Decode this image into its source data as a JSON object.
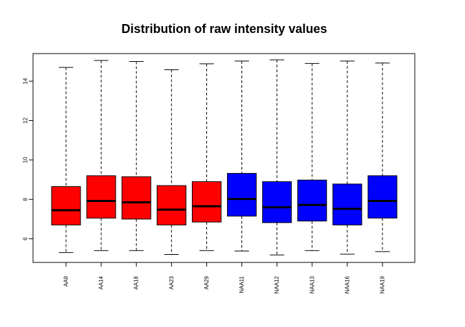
{
  "chart_data": {
    "type": "box",
    "title": "Distribution of raw intensity values",
    "xlabel": "",
    "ylabel": "",
    "ylim": [
      4.8,
      15.4
    ],
    "yticks": [
      6,
      8,
      10,
      12,
      14
    ],
    "categories": [
      "AA9",
      "AA14",
      "AA18",
      "AA23",
      "AA29",
      "NAA11",
      "NAA12",
      "NAA13",
      "NAA16",
      "NAA19"
    ],
    "colors": [
      "#ff0000",
      "#ff0000",
      "#ff0000",
      "#ff0000",
      "#ff0000",
      "#0000ff",
      "#0000ff",
      "#0000ff",
      "#0000ff",
      "#0000ff"
    ],
    "boxes": [
      {
        "min": 5.3,
        "q1": 6.7,
        "median": 7.45,
        "q3": 8.65,
        "max": 14.7
      },
      {
        "min": 5.4,
        "q1": 7.05,
        "median": 7.92,
        "q3": 9.2,
        "max": 15.05
      },
      {
        "min": 5.4,
        "q1": 7.0,
        "median": 7.85,
        "q3": 9.15,
        "max": 15.0
      },
      {
        "min": 5.2,
        "q1": 6.7,
        "median": 7.48,
        "q3": 8.7,
        "max": 14.58
      },
      {
        "min": 5.4,
        "q1": 6.85,
        "median": 7.65,
        "q3": 8.9,
        "max": 14.88
      },
      {
        "min": 5.38,
        "q1": 7.15,
        "median": 8.02,
        "q3": 9.32,
        "max": 15.02
      },
      {
        "min": 5.18,
        "q1": 6.82,
        "median": 7.6,
        "q3": 8.9,
        "max": 15.08
      },
      {
        "min": 5.4,
        "q1": 6.9,
        "median": 7.72,
        "q3": 8.98,
        "max": 14.9
      },
      {
        "min": 5.22,
        "q1": 6.7,
        "median": 7.52,
        "q3": 8.78,
        "max": 15.02
      },
      {
        "min": 5.35,
        "q1": 7.05,
        "median": 7.92,
        "q3": 9.2,
        "max": 14.92
      }
    ],
    "grid": false,
    "legend": "none"
  }
}
